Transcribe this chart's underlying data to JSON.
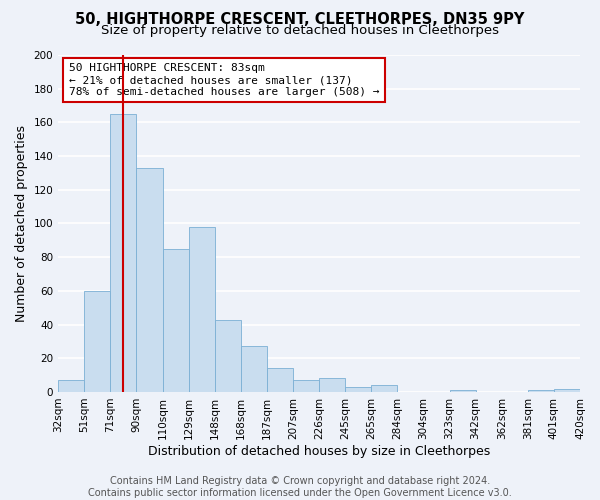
{
  "title": "50, HIGHTHORPE CRESCENT, CLEETHORPES, DN35 9PY",
  "subtitle": "Size of property relative to detached houses in Cleethorpes",
  "xlabel": "Distribution of detached houses by size in Cleethorpes",
  "ylabel": "Number of detached properties",
  "bar_values": [
    7,
    60,
    165,
    133,
    85,
    98,
    43,
    27,
    14,
    7,
    8,
    3,
    4,
    0,
    0,
    1,
    0,
    0,
    1,
    2
  ],
  "bin_labels": [
    "32sqm",
    "51sqm",
    "71sqm",
    "90sqm",
    "110sqm",
    "129sqm",
    "148sqm",
    "168sqm",
    "187sqm",
    "207sqm",
    "226sqm",
    "245sqm",
    "265sqm",
    "284sqm",
    "304sqm",
    "323sqm",
    "342sqm",
    "362sqm",
    "381sqm",
    "401sqm",
    "420sqm"
  ],
  "bin_edges": [
    0,
    1,
    2,
    3,
    4,
    5,
    6,
    7,
    8,
    9,
    10,
    11,
    12,
    13,
    14,
    15,
    16,
    17,
    18,
    19,
    20
  ],
  "bar_color": "#c9ddef",
  "bar_edge_color": "#7bafd4",
  "highlight_bin": 2,
  "highlight_color": "#cc0000",
  "annotation_line1": "50 HIGHTHORPE CRESCENT: 83sqm",
  "annotation_line2": "← 21% of detached houses are smaller (137)",
  "annotation_line3": "78% of semi-detached houses are larger (508) →",
  "annotation_box_color": "#ffffff",
  "annotation_box_edge": "#cc0000",
  "ylim": [
    0,
    200
  ],
  "yticks": [
    0,
    20,
    40,
    60,
    80,
    100,
    120,
    140,
    160,
    180,
    200
  ],
  "footer_line1": "Contains HM Land Registry data © Crown copyright and database right 2024.",
  "footer_line2": "Contains public sector information licensed under the Open Government Licence v3.0.",
  "bg_color": "#eef2f9",
  "grid_color": "#ffffff",
  "title_fontsize": 10.5,
  "subtitle_fontsize": 9.5,
  "axis_label_fontsize": 9,
  "tick_fontsize": 7.5,
  "annotation_fontsize": 8,
  "footer_fontsize": 7
}
